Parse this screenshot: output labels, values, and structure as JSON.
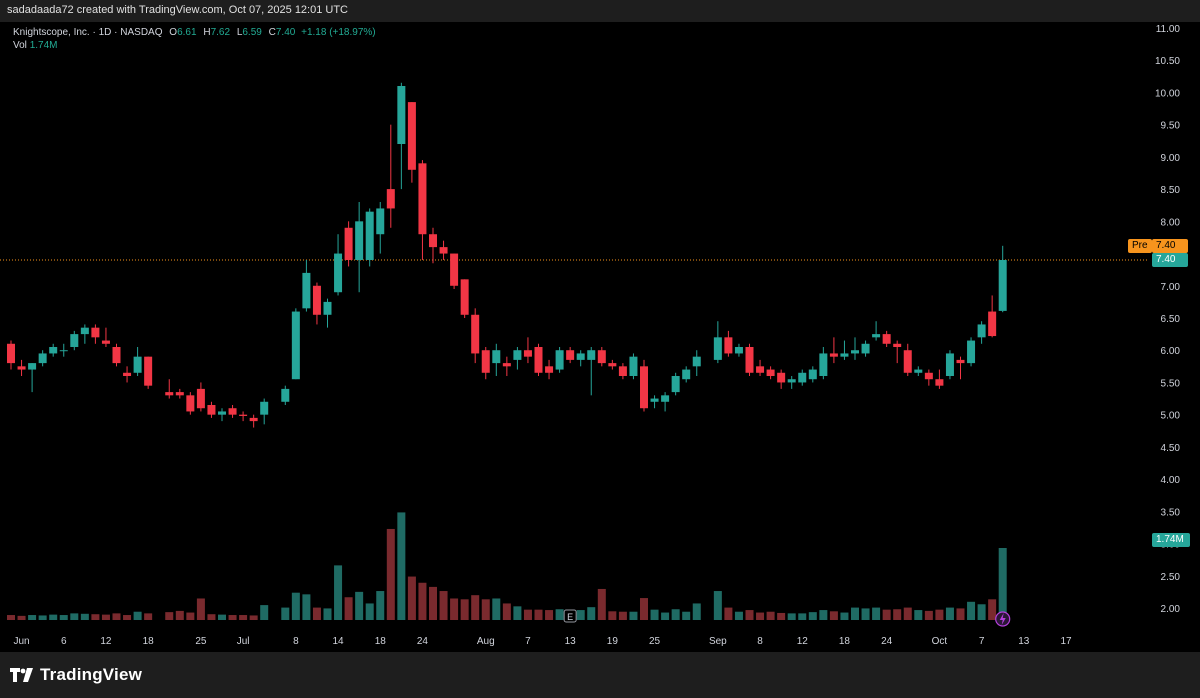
{
  "header": {
    "attribution": "sadadaada72 created with TradingView.com, Oct 07, 2025 12:01 UTC"
  },
  "legend": {
    "name": "Knightscope, Inc. · 1D · NASDAQ",
    "o_label": "O",
    "o_value": "6.61",
    "h_label": "H",
    "h_value": "7.62",
    "l_label": "L",
    "l_value": "6.59",
    "c_label": "C",
    "c_value": "7.40",
    "change": "+1.18 (+18.97%)",
    "vol_label": "Vol",
    "vol_value": "1.74M"
  },
  "tags": {
    "pre_label": "Pre",
    "pre_value": "7.40",
    "last_value": "7.40",
    "vol_value": "1.74M"
  },
  "footer": {
    "brand": "TradingView"
  },
  "colors": {
    "up": "#26a69a",
    "down": "#f23645",
    "vol_up": "#1f6b64",
    "vol_down": "#7a2a2e",
    "pre": "#f7941d",
    "grid_text": "#d1d4dc"
  },
  "icons": {
    "earnings": "E",
    "dividend_bolt": "lightning-icon"
  },
  "chart_data": {
    "type": "candlestick",
    "title": "Knightscope, Inc. · 1D · NASDAQ",
    "y_ticks": [
      "2.00",
      "2.50",
      "3.00",
      "3.50",
      "4.00",
      "4.50",
      "5.00",
      "5.50",
      "6.00",
      "6.50",
      "7.00",
      "7.50",
      "8.00",
      "8.50",
      "9.00",
      "9.50",
      "10.00",
      "10.50",
      "11.00"
    ],
    "ylim": [
      1.6,
      11.0
    ],
    "x_ticks": [
      "Jun",
      "6",
      "12",
      "18",
      "25",
      "Jul",
      "8",
      "14",
      "18",
      "24",
      "Aug",
      "7",
      "13",
      "19",
      "25",
      "Sep",
      "8",
      "12",
      "18",
      "24",
      "Oct",
      "7",
      "13",
      "17"
    ],
    "x_tick_dates": [
      "2025-06-02",
      "2025-06-06",
      "2025-06-12",
      "2025-06-18",
      "2025-06-25",
      "2025-07-01",
      "2025-07-08",
      "2025-07-14",
      "2025-07-18",
      "2025-07-24",
      "2025-08-01",
      "2025-08-07",
      "2025-08-13",
      "2025-08-19",
      "2025-08-25",
      "2025-09-02",
      "2025-09-08",
      "2025-09-12",
      "2025-09-18",
      "2025-09-24",
      "2025-10-01",
      "2025-10-07",
      "2025-10-13",
      "2025-10-17"
    ],
    "last_price": 7.4,
    "candles": [
      {
        "date": "2025-05-30",
        "o": 6.1,
        "h": 6.15,
        "l": 5.7,
        "c": 5.8,
        "v": 0.12
      },
      {
        "date": "2025-06-02",
        "o": 5.75,
        "h": 5.85,
        "l": 5.6,
        "c": 5.7,
        "v": 0.1
      },
      {
        "date": "2025-06-03",
        "o": 5.7,
        "h": 5.8,
        "l": 5.35,
        "c": 5.8,
        "v": 0.12
      },
      {
        "date": "2025-06-04",
        "o": 5.8,
        "h": 6.0,
        "l": 5.75,
        "c": 5.95,
        "v": 0.11
      },
      {
        "date": "2025-06-05",
        "o": 5.95,
        "h": 6.1,
        "l": 5.9,
        "c": 6.05,
        "v": 0.13
      },
      {
        "date": "2025-06-06",
        "o": 6.0,
        "h": 6.1,
        "l": 5.9,
        "c": 6.0,
        "v": 0.12
      },
      {
        "date": "2025-06-09",
        "o": 6.05,
        "h": 6.3,
        "l": 6.0,
        "c": 6.25,
        "v": 0.16
      },
      {
        "date": "2025-06-10",
        "o": 6.25,
        "h": 6.4,
        "l": 6.1,
        "c": 6.35,
        "v": 0.15
      },
      {
        "date": "2025-06-11",
        "o": 6.35,
        "h": 6.4,
        "l": 6.1,
        "c": 6.2,
        "v": 0.14
      },
      {
        "date": "2025-06-12",
        "o": 6.15,
        "h": 6.35,
        "l": 6.05,
        "c": 6.1,
        "v": 0.13
      },
      {
        "date": "2025-06-13",
        "o": 6.05,
        "h": 6.1,
        "l": 5.75,
        "c": 5.8,
        "v": 0.16
      },
      {
        "date": "2025-06-16",
        "o": 5.65,
        "h": 5.75,
        "l": 5.5,
        "c": 5.6,
        "v": 0.12
      },
      {
        "date": "2025-06-17",
        "o": 5.65,
        "h": 6.05,
        "l": 5.6,
        "c": 5.9,
        "v": 0.2
      },
      {
        "date": "2025-06-18",
        "o": 5.9,
        "h": 5.9,
        "l": 5.4,
        "c": 5.45,
        "v": 0.16
      },
      {
        "date": "2025-06-20",
        "o": 5.35,
        "h": 5.55,
        "l": 5.25,
        "c": 5.3,
        "v": 0.19
      },
      {
        "date": "2025-06-23",
        "o": 5.35,
        "h": 5.4,
        "l": 5.25,
        "c": 5.3,
        "v": 0.22
      },
      {
        "date": "2025-06-24",
        "o": 5.3,
        "h": 5.35,
        "l": 5.0,
        "c": 5.05,
        "v": 0.18
      },
      {
        "date": "2025-06-25",
        "o": 5.4,
        "h": 5.5,
        "l": 5.05,
        "c": 5.1,
        "v": 0.52
      },
      {
        "date": "2025-06-26",
        "o": 5.15,
        "h": 5.2,
        "l": 4.95,
        "c": 5.0,
        "v": 0.14
      },
      {
        "date": "2025-06-27",
        "o": 5.0,
        "h": 5.1,
        "l": 4.9,
        "c": 5.05,
        "v": 0.13
      },
      {
        "date": "2025-06-30",
        "o": 5.1,
        "h": 5.15,
        "l": 4.95,
        "c": 5.0,
        "v": 0.12
      },
      {
        "date": "2025-07-01",
        "o": 5.0,
        "h": 5.05,
        "l": 4.9,
        "c": 4.98,
        "v": 0.12
      },
      {
        "date": "2025-07-02",
        "o": 4.95,
        "h": 5.0,
        "l": 4.8,
        "c": 4.9,
        "v": 0.11
      },
      {
        "date": "2025-07-03",
        "o": 5.0,
        "h": 5.25,
        "l": 4.85,
        "c": 5.2,
        "v": 0.36
      },
      {
        "date": "2025-07-07",
        "o": 5.2,
        "h": 5.45,
        "l": 5.15,
        "c": 5.4,
        "v": 0.3
      },
      {
        "date": "2025-07-08",
        "o": 5.55,
        "h": 6.65,
        "l": 5.55,
        "c": 6.6,
        "v": 0.66
      },
      {
        "date": "2025-07-09",
        "o": 6.65,
        "h": 7.4,
        "l": 6.6,
        "c": 7.2,
        "v": 0.62
      },
      {
        "date": "2025-07-10",
        "o": 7.0,
        "h": 7.05,
        "l": 6.4,
        "c": 6.55,
        "v": 0.3
      },
      {
        "date": "2025-07-11",
        "o": 6.55,
        "h": 6.8,
        "l": 6.35,
        "c": 6.75,
        "v": 0.28
      },
      {
        "date": "2025-07-14",
        "o": 6.9,
        "h": 7.8,
        "l": 6.85,
        "c": 7.5,
        "v": 1.32
      },
      {
        "date": "2025-07-15",
        "o": 7.9,
        "h": 8.0,
        "l": 7.3,
        "c": 7.4,
        "v": 0.55
      },
      {
        "date": "2025-07-16",
        "o": 7.4,
        "h": 8.3,
        "l": 6.9,
        "c": 8.0,
        "v": 0.68
      },
      {
        "date": "2025-07-17",
        "o": 7.4,
        "h": 8.2,
        "l": 7.3,
        "c": 8.15,
        "v": 0.4
      },
      {
        "date": "2025-07-18",
        "o": 7.8,
        "h": 8.3,
        "l": 7.5,
        "c": 8.2,
        "v": 0.7
      },
      {
        "date": "2025-07-21",
        "o": 8.5,
        "h": 9.5,
        "l": 7.9,
        "c": 8.2,
        "v": 2.2
      },
      {
        "date": "2025-07-22",
        "o": 9.2,
        "h": 10.15,
        "l": 8.5,
        "c": 10.1,
        "v": 2.6
      },
      {
        "date": "2025-07-23",
        "o": 9.85,
        "h": 9.85,
        "l": 8.6,
        "c": 8.8,
        "v": 1.05
      },
      {
        "date": "2025-07-24",
        "o": 8.9,
        "h": 8.95,
        "l": 7.4,
        "c": 7.8,
        "v": 0.9
      },
      {
        "date": "2025-07-25",
        "o": 7.8,
        "h": 7.9,
        "l": 7.35,
        "c": 7.6,
        "v": 0.8
      },
      {
        "date": "2025-07-28",
        "o": 7.6,
        "h": 7.7,
        "l": 7.4,
        "c": 7.5,
        "v": 0.7
      },
      {
        "date": "2025-07-29",
        "o": 7.5,
        "h": 7.5,
        "l": 6.95,
        "c": 7.0,
        "v": 0.52
      },
      {
        "date": "2025-07-30",
        "o": 7.1,
        "h": 7.1,
        "l": 6.5,
        "c": 6.55,
        "v": 0.5
      },
      {
        "date": "2025-07-31",
        "o": 6.55,
        "h": 6.65,
        "l": 5.8,
        "c": 5.95,
        "v": 0.6
      },
      {
        "date": "2025-08-01",
        "o": 6.0,
        "h": 6.05,
        "l": 5.55,
        "c": 5.65,
        "v": 0.5
      },
      {
        "date": "2025-08-04",
        "o": 5.8,
        "h": 6.1,
        "l": 5.6,
        "c": 6.0,
        "v": 0.52
      },
      {
        "date": "2025-08-05",
        "o": 5.8,
        "h": 5.9,
        "l": 5.6,
        "c": 5.75,
        "v": 0.4
      },
      {
        "date": "2025-08-06",
        "o": 5.85,
        "h": 6.05,
        "l": 5.7,
        "c": 6.0,
        "v": 0.33
      },
      {
        "date": "2025-08-07",
        "o": 6.0,
        "h": 6.2,
        "l": 5.8,
        "c": 5.9,
        "v": 0.25
      },
      {
        "date": "2025-08-08",
        "o": 6.05,
        "h": 6.1,
        "l": 5.6,
        "c": 5.65,
        "v": 0.25
      },
      {
        "date": "2025-08-11",
        "o": 5.75,
        "h": 5.85,
        "l": 5.55,
        "c": 5.65,
        "v": 0.24
      },
      {
        "date": "2025-08-12",
        "o": 5.7,
        "h": 6.05,
        "l": 5.65,
        "c": 6.0,
        "v": 0.26
      },
      {
        "date": "2025-08-13",
        "o": 6.0,
        "h": 6.05,
        "l": 5.8,
        "c": 5.85,
        "v": 0.2
      },
      {
        "date": "2025-08-14",
        "o": 5.85,
        "h": 6.0,
        "l": 5.75,
        "c": 5.95,
        "v": 0.24
      },
      {
        "date": "2025-08-15",
        "o": 5.85,
        "h": 6.05,
        "l": 5.3,
        "c": 6.0,
        "v": 0.31
      },
      {
        "date": "2025-08-18",
        "o": 6.0,
        "h": 6.05,
        "l": 5.75,
        "c": 5.8,
        "v": 0.75
      },
      {
        "date": "2025-08-19",
        "o": 5.8,
        "h": 5.85,
        "l": 5.7,
        "c": 5.75,
        "v": 0.21
      },
      {
        "date": "2025-08-20",
        "o": 5.75,
        "h": 5.8,
        "l": 5.55,
        "c": 5.6,
        "v": 0.2
      },
      {
        "date": "2025-08-21",
        "o": 5.6,
        "h": 5.95,
        "l": 5.55,
        "c": 5.9,
        "v": 0.2
      },
      {
        "date": "2025-08-22",
        "o": 5.75,
        "h": 5.85,
        "l": 5.05,
        "c": 5.1,
        "v": 0.53
      },
      {
        "date": "2025-08-25",
        "o": 5.2,
        "h": 5.3,
        "l": 5.1,
        "c": 5.25,
        "v": 0.25
      },
      {
        "date": "2025-08-26",
        "o": 5.2,
        "h": 5.35,
        "l": 5.05,
        "c": 5.3,
        "v": 0.18
      },
      {
        "date": "2025-08-27",
        "o": 5.35,
        "h": 5.65,
        "l": 5.3,
        "c": 5.6,
        "v": 0.26
      },
      {
        "date": "2025-08-28",
        "o": 5.55,
        "h": 5.75,
        "l": 5.5,
        "c": 5.7,
        "v": 0.2
      },
      {
        "date": "2025-08-29",
        "o": 5.75,
        "h": 6.0,
        "l": 5.6,
        "c": 5.9,
        "v": 0.4
      },
      {
        "date": "2025-09-02",
        "o": 5.85,
        "h": 6.45,
        "l": 5.8,
        "c": 6.2,
        "v": 0.7
      },
      {
        "date": "2025-09-03",
        "o": 6.2,
        "h": 6.3,
        "l": 5.9,
        "c": 5.95,
        "v": 0.3
      },
      {
        "date": "2025-09-04",
        "o": 5.95,
        "h": 6.1,
        "l": 5.9,
        "c": 6.05,
        "v": 0.2
      },
      {
        "date": "2025-09-05",
        "o": 6.05,
        "h": 6.1,
        "l": 5.6,
        "c": 5.65,
        "v": 0.24
      },
      {
        "date": "2025-09-08",
        "o": 5.75,
        "h": 5.85,
        "l": 5.6,
        "c": 5.65,
        "v": 0.18
      },
      {
        "date": "2025-09-09",
        "o": 5.7,
        "h": 5.75,
        "l": 5.55,
        "c": 5.6,
        "v": 0.2
      },
      {
        "date": "2025-09-10",
        "o": 5.65,
        "h": 5.7,
        "l": 5.4,
        "c": 5.5,
        "v": 0.17
      },
      {
        "date": "2025-09-11",
        "o": 5.5,
        "h": 5.6,
        "l": 5.4,
        "c": 5.55,
        "v": 0.16
      },
      {
        "date": "2025-09-12",
        "o": 5.5,
        "h": 5.7,
        "l": 5.45,
        "c": 5.65,
        "v": 0.16
      },
      {
        "date": "2025-09-15",
        "o": 5.55,
        "h": 5.75,
        "l": 5.5,
        "c": 5.7,
        "v": 0.19
      },
      {
        "date": "2025-09-16",
        "o": 5.6,
        "h": 6.05,
        "l": 5.55,
        "c": 5.95,
        "v": 0.24
      },
      {
        "date": "2025-09-17",
        "o": 5.95,
        "h": 6.2,
        "l": 5.8,
        "c": 5.9,
        "v": 0.21
      },
      {
        "date": "2025-09-18",
        "o": 5.9,
        "h": 6.15,
        "l": 5.85,
        "c": 5.95,
        "v": 0.18
      },
      {
        "date": "2025-09-19",
        "o": 5.95,
        "h": 6.2,
        "l": 5.85,
        "c": 6.0,
        "v": 0.3
      },
      {
        "date": "2025-09-22",
        "o": 5.95,
        "h": 6.15,
        "l": 5.9,
        "c": 6.1,
        "v": 0.28
      },
      {
        "date": "2025-09-23",
        "o": 6.2,
        "h": 6.45,
        "l": 6.15,
        "c": 6.25,
        "v": 0.3
      },
      {
        "date": "2025-09-24",
        "o": 6.25,
        "h": 6.3,
        "l": 6.05,
        "c": 6.1,
        "v": 0.25
      },
      {
        "date": "2025-09-25",
        "o": 6.1,
        "h": 6.15,
        "l": 5.8,
        "c": 6.05,
        "v": 0.26
      },
      {
        "date": "2025-09-26",
        "o": 6.0,
        "h": 6.1,
        "l": 5.6,
        "c": 5.65,
        "v": 0.3
      },
      {
        "date": "2025-09-29",
        "o": 5.65,
        "h": 5.75,
        "l": 5.6,
        "c": 5.7,
        "v": 0.24
      },
      {
        "date": "2025-09-30",
        "o": 5.65,
        "h": 5.7,
        "l": 5.45,
        "c": 5.55,
        "v": 0.22
      },
      {
        "date": "2025-10-01",
        "o": 5.55,
        "h": 5.7,
        "l": 5.4,
        "c": 5.45,
        "v": 0.25
      },
      {
        "date": "2025-10-02",
        "o": 5.6,
        "h": 6.0,
        "l": 5.55,
        "c": 5.95,
        "v": 0.3
      },
      {
        "date": "2025-10-03",
        "o": 5.85,
        "h": 5.9,
        "l": 5.55,
        "c": 5.8,
        "v": 0.28
      },
      {
        "date": "2025-10-06",
        "o": 5.8,
        "h": 6.2,
        "l": 5.75,
        "c": 6.15,
        "v": 0.44
      },
      {
        "date": "2025-10-07",
        "o": 6.2,
        "h": 6.45,
        "l": 6.1,
        "c": 6.4,
        "v": 0.38
      },
      {
        "date": "2025-10-08",
        "o": 6.6,
        "h": 6.85,
        "l": 6.2,
        "c": 6.22,
        "v": 0.5
      },
      {
        "date": "2025-10-09",
        "o": 6.61,
        "h": 7.62,
        "l": 6.59,
        "c": 7.4,
        "v": 1.74
      }
    ]
  }
}
